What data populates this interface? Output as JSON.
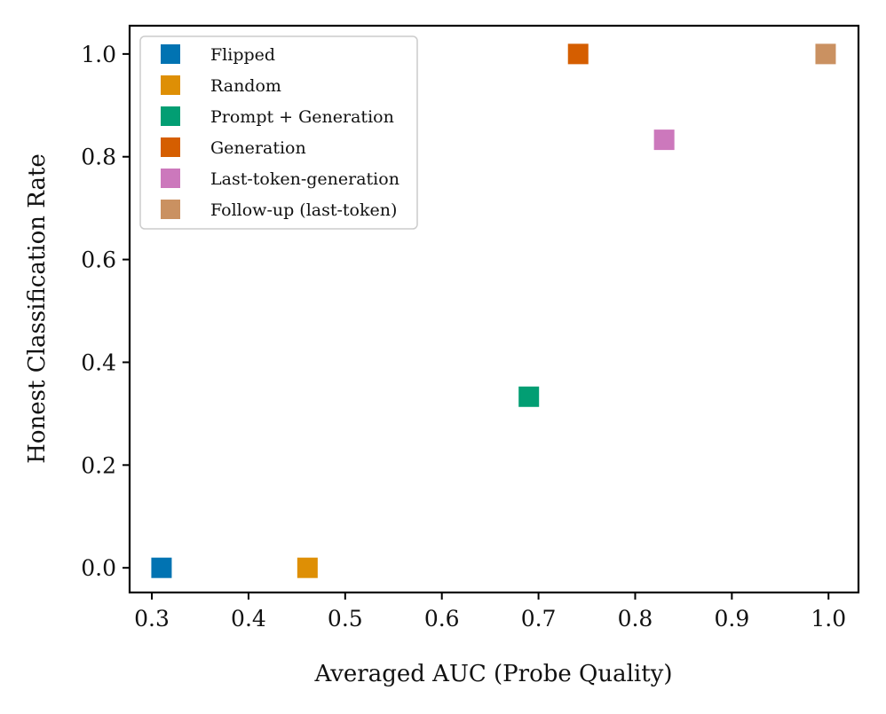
{
  "chart_data": {
    "type": "scatter",
    "title": "",
    "xlabel": "Averaged AUC (Probe Quality)",
    "ylabel": "Honest Classification Rate",
    "xlim": [
      0.277,
      1.031
    ],
    "ylim": [
      -0.048,
      1.055
    ],
    "xticks": [
      0.3,
      0.4,
      0.5,
      0.6,
      0.7,
      0.8,
      0.9,
      1.0
    ],
    "xtick_labels": [
      "0.3",
      "0.4",
      "0.5",
      "0.6",
      "0.7",
      "0.8",
      "0.9",
      "1.0"
    ],
    "yticks": [
      0.0,
      0.2,
      0.4,
      0.6,
      0.8,
      1.0
    ],
    "ytick_labels": [
      "0.0",
      "0.2",
      "0.4",
      "0.6",
      "0.8",
      "1.0"
    ],
    "grid": false,
    "legend_position": "top-left",
    "marker": "square",
    "series": [
      {
        "name": "Flipped",
        "color": "#0173b2",
        "x": [
          0.31
        ],
        "y": [
          0.0
        ]
      },
      {
        "name": "Random",
        "color": "#de8f05",
        "x": [
          0.461
        ],
        "y": [
          0.0
        ]
      },
      {
        "name": "Prompt + Generation",
        "color": "#029e73",
        "x": [
          0.69
        ],
        "y": [
          0.333
        ]
      },
      {
        "name": "Generation",
        "color": "#d55e00",
        "x": [
          0.741
        ],
        "y": [
          1.0
        ]
      },
      {
        "name": "Last-token-generation",
        "color": "#cc78bc",
        "x": [
          0.83
        ],
        "y": [
          0.833
        ]
      },
      {
        "name": "Follow-up (last-token)",
        "color": "#ca9161",
        "x": [
          0.997
        ],
        "y": [
          1.0
        ]
      }
    ]
  }
}
